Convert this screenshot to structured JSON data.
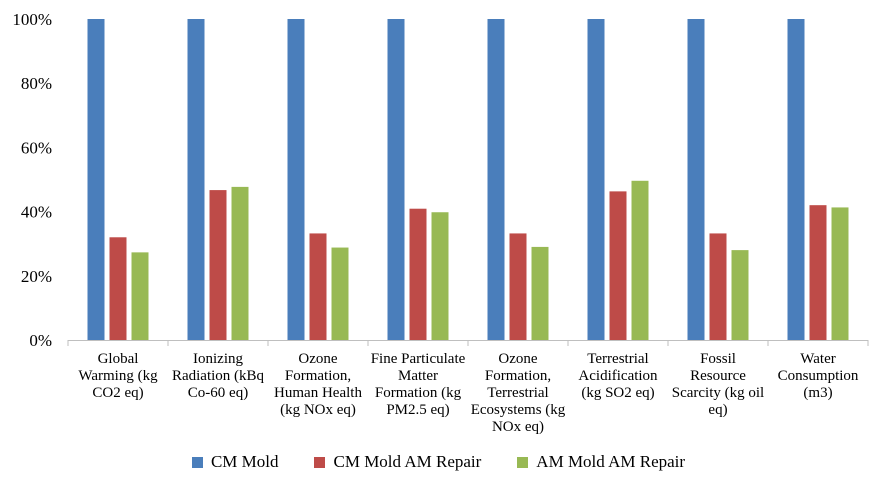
{
  "chart_data": {
    "type": "bar",
    "title": "",
    "xlabel": "",
    "ylabel": "",
    "ylim": [
      0,
      100
    ],
    "yticks": [
      "0%",
      "20%",
      "40%",
      "60%",
      "80%",
      "100%"
    ],
    "y_unit": "%",
    "grid": false,
    "legend_position": "bottom",
    "categories": [
      [
        "Global",
        "Warming (kg",
        "CO2 eq)"
      ],
      [
        "Ionizing",
        "Radiation (kBq",
        "Co-60 eq)"
      ],
      [
        "Ozone",
        "Formation,",
        "Human Health",
        "(kg NOx eq)"
      ],
      [
        "Fine Particulate",
        "Matter",
        "Formation (kg",
        "PM2.5 eq)"
      ],
      [
        "Ozone",
        "Formation,",
        "Terrestrial",
        "Ecosystems (kg",
        "NOx eq)"
      ],
      [
        "Terrestrial",
        "Acidification",
        "(kg SO2 eq)"
      ],
      [
        "Fossil",
        "Resource",
        "Scarcity (kg oil",
        "eq)"
      ],
      [
        "Water",
        "Consumption",
        "(m3)"
      ]
    ],
    "series": [
      {
        "name": "CM Mold",
        "color": "#4a7ebb",
        "values": [
          100,
          100,
          100,
          100,
          100,
          100,
          100,
          100
        ]
      },
      {
        "name": "CM Mold AM Repair",
        "color": "#be4b48",
        "values": [
          32,
          46.7,
          33.2,
          40.9,
          33.2,
          46.3,
          33.2,
          42
        ]
      },
      {
        "name": "AM Mold AM Repair",
        "color": "#98b954",
        "values": [
          27.3,
          47.7,
          28.8,
          39.8,
          29,
          49.6,
          28,
          41.3
        ]
      }
    ]
  }
}
